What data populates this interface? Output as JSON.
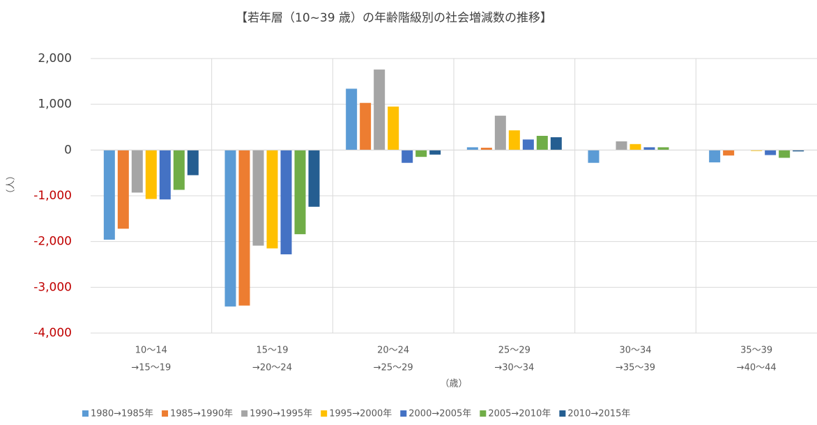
{
  "chart_data": {
    "type": "bar",
    "title": "【若年層（10~39 歳）の年齢階級別の社会増減数の推移】",
    "y_label": "（人）",
    "x_label": "（歳）",
    "categories": [
      [
        "10～14",
        "→15～19"
      ],
      [
        "15～19",
        "→20～24"
      ],
      [
        "20～24",
        "→25～29"
      ],
      [
        "25～29",
        "→30～34"
      ],
      [
        "30～34",
        "→35～39"
      ],
      [
        "35～39",
        "→40～44"
      ]
    ],
    "series": [
      {
        "name": "1980→1985年",
        "color": "#5b9bd5",
        "values": [
          -1960,
          -3420,
          1340,
          60,
          -280,
          -270
        ]
      },
      {
        "name": "1985→1990年",
        "color": "#ed7d31",
        "values": [
          -1720,
          -3400,
          1030,
          50,
          0,
          -120
        ]
      },
      {
        "name": "1990→1995年",
        "color": "#a5a5a5",
        "values": [
          -930,
          -2090,
          1760,
          750,
          190,
          0
        ]
      },
      {
        "name": "1995→2000年",
        "color": "#ffc000",
        "values": [
          -1070,
          -2150,
          950,
          430,
          130,
          -20
        ]
      },
      {
        "name": "2000→2005年",
        "color": "#4472c4",
        "values": [
          -1080,
          -2280,
          -280,
          230,
          60,
          -110
        ]
      },
      {
        "name": "2005→2010年",
        "color": "#70ad47",
        "values": [
          -870,
          -1840,
          -150,
          310,
          60,
          -170
        ]
      },
      {
        "name": "2010→2015年",
        "color": "#255e91",
        "values": [
          -550,
          -1240,
          -100,
          280,
          0,
          -30
        ]
      }
    ],
    "ylim": [
      -4000,
      2000
    ],
    "yticks": [
      {
        "value": 2000,
        "label": "2,000"
      },
      {
        "value": 1000,
        "label": "1,000"
      },
      0,
      {
        "value": -1000,
        "label": "-1,000"
      },
      {
        "value": -2000,
        "label": "-2,000"
      },
      {
        "value": -3000,
        "label": "-3,000"
      },
      {
        "value": -4000,
        "label": "-4,000"
      }
    ],
    "grid": true,
    "negative_tick_color": "#c00000",
    "legend": "bottom"
  }
}
